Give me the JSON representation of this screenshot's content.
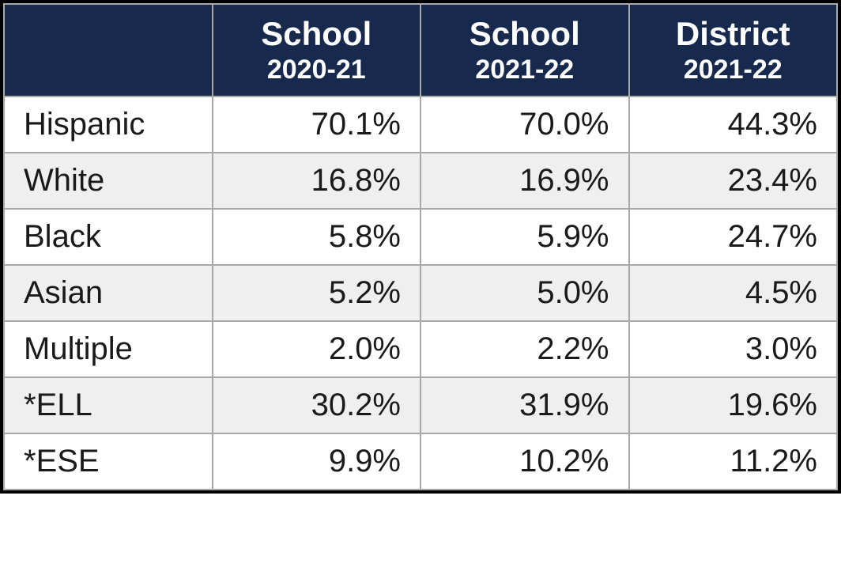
{
  "table": {
    "type": "table",
    "header_bg_color": "#18294e",
    "header_text_color": "#ffffff",
    "border_color": "#a8a8a8",
    "outer_border_color": "#000000",
    "row_alt_bg": "#efefef",
    "row_bg": "#ffffff",
    "label_font_size": 40,
    "data_font_size": 40,
    "header_top_font_size": 42,
    "header_bottom_font_size": 34,
    "text_color": "#1a1a1a",
    "columns": [
      {
        "top": "",
        "bottom": ""
      },
      {
        "top": "School",
        "bottom": "2020-21"
      },
      {
        "top": "School",
        "bottom": "2021-22"
      },
      {
        "top": "District",
        "bottom": "2021-22"
      }
    ],
    "rows": [
      {
        "label": "Hispanic",
        "values": [
          "70.1%",
          "70.0%",
          "44.3%"
        ]
      },
      {
        "label": "White",
        "values": [
          "16.8%",
          "16.9%",
          "23.4%"
        ]
      },
      {
        "label": "Black",
        "values": [
          "5.8%",
          "5.9%",
          "24.7%"
        ]
      },
      {
        "label": "Asian",
        "values": [
          "5.2%",
          "5.0%",
          "4.5%"
        ]
      },
      {
        "label": "Multiple",
        "values": [
          "2.0%",
          "2.2%",
          "3.0%"
        ]
      },
      {
        "label": "*ELL",
        "values": [
          "30.2%",
          "31.9%",
          "19.6%"
        ]
      },
      {
        "label": "*ESE",
        "values": [
          "9.9%",
          "10.2%",
          "11.2%"
        ]
      }
    ]
  }
}
